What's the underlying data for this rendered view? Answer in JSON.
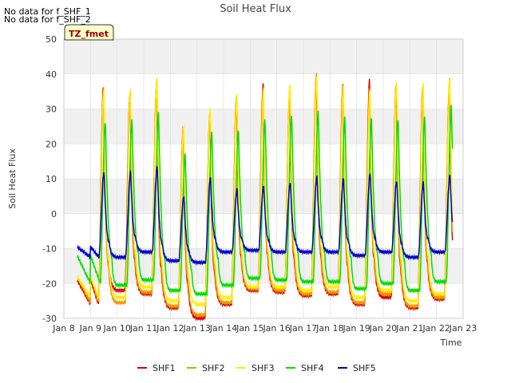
{
  "notes": [
    "No data for f_SHF_1",
    "No data for f_SHF_2"
  ],
  "badge": "TZ_fmet",
  "colors": {
    "SHF1": "#dd0000",
    "SHF2": "#ee9900",
    "SHF3": "#ffee00",
    "SHF4": "#00dd00",
    "SHF5": "#0000cc",
    "band": "#f0f0f0",
    "grid": "#dddddd"
  },
  "chart_data": {
    "type": "line",
    "title": "Soil Heat Flux",
    "xlabel": "Time",
    "ylabel": "Soil Heat Flux",
    "xlim": [
      8,
      23
    ],
    "ylim": [
      -30,
      50
    ],
    "x_ticks": [
      8,
      9,
      10,
      11,
      12,
      13,
      14,
      15,
      16,
      17,
      18,
      19,
      20,
      21,
      22,
      23
    ],
    "x_tick_labels": [
      "Jan 8",
      "Jan 9",
      "Jan 10",
      "Jan 11",
      "Jan 12",
      "Jan 13",
      "Jan 14",
      "Jan 15",
      "Jan 16",
      "Jan 17",
      "Jan 18",
      "Jan 19",
      "Jan 20",
      "Jan 21",
      "Jan 22",
      "Jan 23"
    ],
    "y_ticks": [
      -30,
      -20,
      -10,
      0,
      10,
      20,
      30,
      40,
      50
    ],
    "legend_position": "bottom-center",
    "series_shape": "daily diurnal cycle; values listed per day as [daily peak, nightly minimum]",
    "days": [
      9,
      10,
      11,
      12,
      13,
      14,
      15,
      16,
      17,
      18,
      19,
      20,
      21,
      22
    ],
    "series": [
      {
        "name": "SHF1",
        "start": -19,
        "peaks": [
          36.5,
          34.5,
          37.5,
          25,
          28.5,
          33.5,
          37,
          34.5,
          40,
          37.5,
          38.5,
          37,
          36.5,
          37
        ],
        "mins": [
          -26,
          -22,
          -23,
          -27,
          -30,
          -26,
          -22,
          -22.5,
          -23.5,
          -23,
          -26,
          -24,
          -27,
          -24.5,
          -24
        ]
      },
      {
        "name": "SHF2",
        "start": -18,
        "peaks": [
          35.5,
          35,
          38.5,
          25,
          29.5,
          34,
          36,
          36.5,
          40.5,
          37,
          36,
          37,
          36.5,
          38.5
        ],
        "mins": [
          -25.5,
          -25.5,
          -22.5,
          -26.5,
          -29,
          -25.5,
          -21.5,
          -22,
          -23,
          -22.5,
          -25.5,
          -23,
          -26.5,
          -24,
          -23.5
        ]
      },
      {
        "name": "SHF3",
        "start": -18,
        "peaks": [
          36,
          35.5,
          39,
          25.5,
          30.5,
          34,
          35.5,
          37.5,
          40,
          36.5,
          35.5,
          38,
          37,
          39
        ],
        "mins": [
          -24,
          -24,
          -21,
          -25,
          -26,
          -24,
          -21,
          -21,
          -22,
          -21,
          -24,
          -22,
          -25,
          -23,
          -23
        ]
      },
      {
        "name": "SHF4",
        "start": -12,
        "peaks": [
          26.5,
          27,
          29,
          17.5,
          23.5,
          24,
          27,
          28.5,
          29.5,
          27.5,
          27.5,
          27.5,
          28,
          31
        ],
        "mins": [
          -20,
          -20.5,
          -19,
          -22,
          -23,
          -20.5,
          -18.5,
          -19,
          -19.5,
          -19.5,
          -21.5,
          -20,
          -22,
          -19.5,
          -16
        ]
      },
      {
        "name": "SHF5",
        "start": -9.5,
        "peaks": [
          12,
          12,
          13.5,
          5,
          10.5,
          7,
          8,
          9,
          10.5,
          10,
          11.5,
          9.5,
          9,
          11
        ],
        "mins": [
          -12.5,
          -12.5,
          -11,
          -13.5,
          -14,
          -11,
          -10.5,
          -11,
          -11,
          -11,
          -12,
          -11,
          -12.5,
          -11,
          -11
        ]
      }
    ]
  }
}
